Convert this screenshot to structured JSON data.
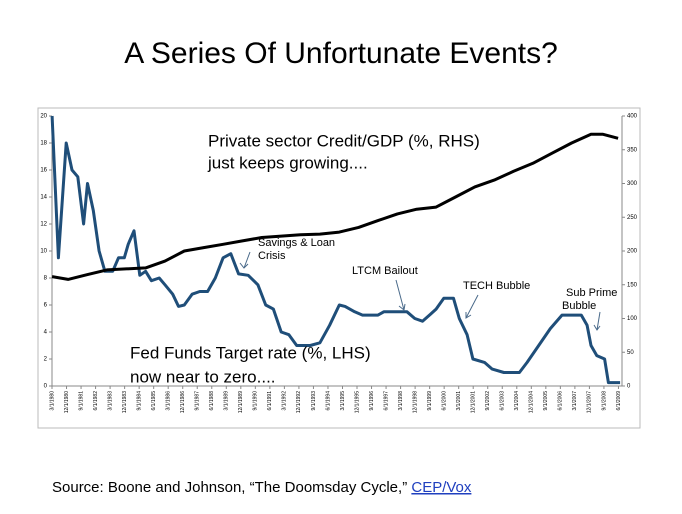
{
  "chart_data": {
    "type": "line",
    "title": "A Series Of Unfortunate Events?",
    "annotations": [
      "Private sector Credit/GDP (%, RHS)",
      "just keeps growing....",
      "Fed Funds Target rate (%, LHS)",
      "now near to zero....",
      "Savings & Loan",
      "Crisis",
      "LTCM Bailout",
      "TECH Bubble",
      "Sub Prime",
      "Bubble"
    ],
    "source": "Source: Boone and Johnson, “The Doomsday Cycle,”",
    "source_link": "CEP/Vox",
    "xlim": [
      1980.167,
      2009.6
    ],
    "xticks": [
      {
        "value": 1980.167,
        "label": "3/1/1980"
      },
      {
        "value": 1980.917,
        "label": "12/1/1980"
      },
      {
        "value": 1981.667,
        "label": "9/1/1981"
      },
      {
        "value": 1982.417,
        "label": "6/1/1982"
      },
      {
        "value": 1983.167,
        "label": "3/1/1983"
      },
      {
        "value": 1983.917,
        "label": "12/1/1983"
      },
      {
        "value": 1984.667,
        "label": "9/1/1984"
      },
      {
        "value": 1985.417,
        "label": "6/1/1985"
      },
      {
        "value": 1986.167,
        "label": "3/1/1986"
      },
      {
        "value": 1986.917,
        "label": "12/1/1986"
      },
      {
        "value": 1987.667,
        "label": "9/1/1987"
      },
      {
        "value": 1988.417,
        "label": "6/1/1988"
      },
      {
        "value": 1989.167,
        "label": "3/1/1989"
      },
      {
        "value": 1989.917,
        "label": "12/1/1989"
      },
      {
        "value": 1990.667,
        "label": "9/1/1990"
      },
      {
        "value": 1991.417,
        "label": "6/1/1991"
      },
      {
        "value": 1992.167,
        "label": "3/1/1992"
      },
      {
        "value": 1992.917,
        "label": "12/1/1992"
      },
      {
        "value": 1993.667,
        "label": "9/1/1993"
      },
      {
        "value": 1994.417,
        "label": "6/1/1994"
      },
      {
        "value": 1995.167,
        "label": "3/1/1995"
      },
      {
        "value": 1995.917,
        "label": "12/1/1995"
      },
      {
        "value": 1996.667,
        "label": "9/1/1996"
      },
      {
        "value": 1997.417,
        "label": "6/1/1997"
      },
      {
        "value": 1998.167,
        "label": "3/1/1998"
      },
      {
        "value": 1998.917,
        "label": "12/1/1998"
      },
      {
        "value": 1999.667,
        "label": "9/1/1999"
      },
      {
        "value": 2000.417,
        "label": "6/1/2000"
      },
      {
        "value": 2001.167,
        "label": "3/1/2001"
      },
      {
        "value": 2001.917,
        "label": "12/1/2001"
      },
      {
        "value": 2002.667,
        "label": "9/1/2002"
      },
      {
        "value": 2003.417,
        "label": "6/1/2003"
      },
      {
        "value": 2004.167,
        "label": "3/1/2004"
      },
      {
        "value": 2004.917,
        "label": "12/1/2004"
      },
      {
        "value": 2005.667,
        "label": "9/1/2005"
      },
      {
        "value": 2006.417,
        "label": "6/1/2006"
      },
      {
        "value": 2007.167,
        "label": "3/1/2007"
      },
      {
        "value": 2007.917,
        "label": "12/1/2007"
      },
      {
        "value": 2008.667,
        "label": "9/1/2008"
      },
      {
        "value": 2009.417,
        "label": "6/1/2009"
      }
    ],
    "ylim": [
      0,
      20
    ],
    "yticks": [
      0,
      2,
      4,
      6,
      8,
      10,
      12,
      14,
      16,
      18,
      20
    ],
    "y2lim": [
      0,
      400
    ],
    "y2ticks": [
      0,
      50,
      100,
      150,
      200,
      250,
      300,
      350,
      400
    ],
    "series": [
      {
        "name": "Fed Funds Target rate",
        "color": "#1f4e79",
        "x": [
          1980.17,
          1980.5,
          1980.9,
          1981.2,
          1981.5,
          1981.8,
          1982.0,
          1982.3,
          1982.6,
          1982.9,
          1983.3,
          1983.6,
          1983.9,
          1984.1,
          1984.4,
          1984.7,
          1985.0,
          1985.3,
          1985.7,
          1986.0,
          1986.4,
          1986.7,
          1987.0,
          1987.4,
          1987.8,
          1988.2,
          1988.6,
          1989.0,
          1989.4,
          1989.8,
          1990.3,
          1990.8,
          1991.2,
          1991.6,
          1992.0,
          1992.4,
          1992.8,
          1993.5,
          1994.0,
          1994.5,
          1995.0,
          1995.3,
          1995.8,
          1996.2,
          1997.0,
          1997.3,
          1998.5,
          1998.9,
          1999.3,
          1999.7,
          2000.0,
          2000.4,
          2000.9,
          2001.2,
          2001.6,
          2001.9,
          2002.5,
          2002.9,
          2003.5,
          2004.3,
          2004.7,
          2005.3,
          2005.9,
          2006.5,
          2007.5,
          2007.8,
          2008.0,
          2008.3,
          2008.7,
          2008.9,
          2009.5
        ],
        "values": [
          20,
          9.5,
          18,
          16,
          15.5,
          12,
          15,
          13,
          10,
          8.5,
          8.5,
          9.5,
          9.5,
          10.5,
          11.5,
          8.2,
          8.5,
          7.8,
          8,
          7.5,
          6.8,
          5.9,
          6,
          6.8,
          7,
          7,
          8,
          9.5,
          9.8,
          8.3,
          8.2,
          7.5,
          6,
          5.7,
          4,
          3.8,
          3,
          3,
          3.2,
          4.5,
          6,
          5.9,
          5.5,
          5.25,
          5.25,
          5.5,
          5.5,
          5,
          4.8,
          5.3,
          5.7,
          6.5,
          6.5,
          5,
          3.8,
          2,
          1.75,
          1.25,
          1,
          1,
          1.75,
          3,
          4.25,
          5.25,
          5.25,
          4.5,
          3,
          2.25,
          2,
          0.25,
          0.25
        ]
      },
      {
        "name": "Private sector Credit/GDP",
        "color": "#000000",
        "axis": "y2",
        "x": [
          1980.17,
          1981,
          1982,
          1983,
          1985,
          1986,
          1987,
          1988,
          1989,
          1990,
          1991,
          1992,
          1993,
          1994,
          1995,
          1996,
          1997,
          1998,
          1999,
          2000,
          2001,
          2002,
          2003,
          2004,
          2005,
          2006,
          2007,
          2008,
          2008.6,
          2009.4
        ],
        "values": [
          162,
          158,
          165,
          172,
          175,
          185,
          200,
          205,
          210,
          215,
          220,
          222,
          224,
          225,
          228,
          235,
          245,
          255,
          262,
          265,
          280,
          295,
          305,
          318,
          330,
          345,
          360,
          373,
          373,
          367
        ]
      }
    ]
  }
}
